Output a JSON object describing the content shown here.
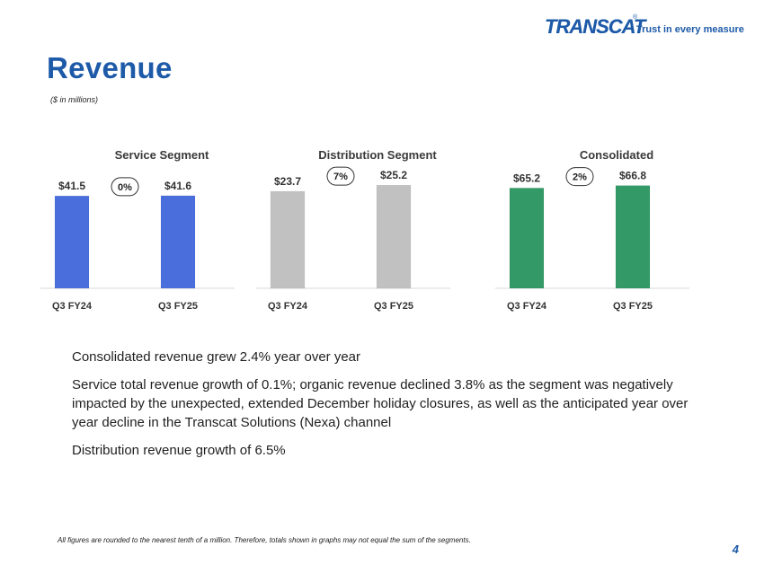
{
  "logo": {
    "word": "TRANSCAT",
    "tagline": "Trust in every measure"
  },
  "title": "Revenue",
  "units_note": "($ in millions)",
  "chart_data": [
    {
      "type": "bar",
      "title": "Service Segment",
      "categories": [
        "Q3 FY24",
        "Q3 FY25"
      ],
      "values": [
        41.5,
        41.6
      ],
      "data_labels": [
        "$41.5",
        "$41.6"
      ],
      "growth_badge": "0%",
      "color": "#4a6fdd",
      "ylim": [
        0,
        45.6
      ]
    },
    {
      "type": "bar",
      "title": "Distribution Segment",
      "categories": [
        "Q3 FY24",
        "Q3 FY25"
      ],
      "values": [
        23.7,
        25.2
      ],
      "data_labels": [
        "$23.7",
        "$25.2"
      ],
      "growth_badge": "7%",
      "color": "#c1c1c1",
      "ylim": [
        0,
        24.8
      ]
    },
    {
      "type": "bar",
      "title": "Consolidated",
      "categories": [
        "Q3 FY24",
        "Q3 FY25"
      ],
      "values": [
        65.2,
        66.8
      ],
      "data_labels": [
        "$65.2",
        "$66.8"
      ],
      "growth_badge": "2%",
      "color": "#339966",
      "ylim": [
        0,
        66
      ]
    }
  ],
  "bullets": [
    "Consolidated revenue grew 2.4% year over year",
    "Service total revenue growth of 0.1%; organic revenue declined 3.8% as the segment was negatively impacted by the unexpected, extended December holiday closures, as well as the anticipated year over year decline in the Transcat Solutions (Nexa) channel",
    "Distribution revenue growth of 6.5%"
  ],
  "footnote": "All figures are rounded to the nearest tenth of a million. Therefore, totals shown in graphs may not equal the sum of the segments.",
  "page_number": "4"
}
